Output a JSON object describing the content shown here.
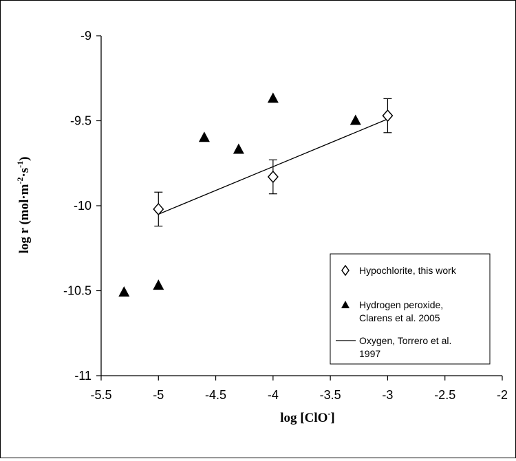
{
  "chart_data": {
    "type": "scatter",
    "xlabel": {
      "main": "log [ClO",
      "sup": "-",
      "end": "]"
    },
    "ylabel": {
      "main": "log r (mol·m",
      "sup1": "-2",
      "mid": "·s",
      "sup2": "-1",
      "end": ")"
    },
    "xlim": [
      -5.5,
      -2
    ],
    "ylim": [
      -11,
      -9
    ],
    "x_ticks": [
      "-5.5",
      "-5",
      "-4.5",
      "-4",
      "-3.5",
      "-3",
      "-2.5",
      "-2"
    ],
    "y_ticks": [
      "-9",
      "-9.5",
      "-10",
      "-10.5",
      "-11"
    ],
    "grid": false,
    "legend_position": "bottom-right",
    "series": [
      {
        "name": "Hypochlorite, this work",
        "marker": "open-diamond",
        "color": "#000000",
        "points": [
          {
            "x": -5,
            "y": -10.02,
            "err": 0.1
          },
          {
            "x": -4,
            "y": -9.83,
            "err": 0.1
          },
          {
            "x": -3,
            "y": -9.47,
            "err": 0.1
          }
        ]
      },
      {
        "name": "Hydrogen peroxide, Clarens et al. 2005",
        "legend_lines": [
          "Hydrogen peroxide,",
          "Clarens et al. 2005"
        ],
        "marker": "filled-triangle",
        "color": "#000000",
        "points": [
          {
            "x": -5.3,
            "y": -10.51
          },
          {
            "x": -5,
            "y": -10.47
          },
          {
            "x": -4.6,
            "y": -9.6
          },
          {
            "x": -4.3,
            "y": -9.67
          },
          {
            "x": -4,
            "y": -9.37
          },
          {
            "x": -3.28,
            "y": -9.5
          }
        ]
      },
      {
        "name": "Oxygen, Torrero et al. 1997",
        "legend_lines": [
          "Oxygen, Torrero et al.",
          "1997"
        ],
        "marker": "line",
        "color": "#000000",
        "points": [
          {
            "x": -5,
            "y": -10.05
          },
          {
            "x": -3,
            "y": -9.49
          }
        ]
      }
    ]
  }
}
